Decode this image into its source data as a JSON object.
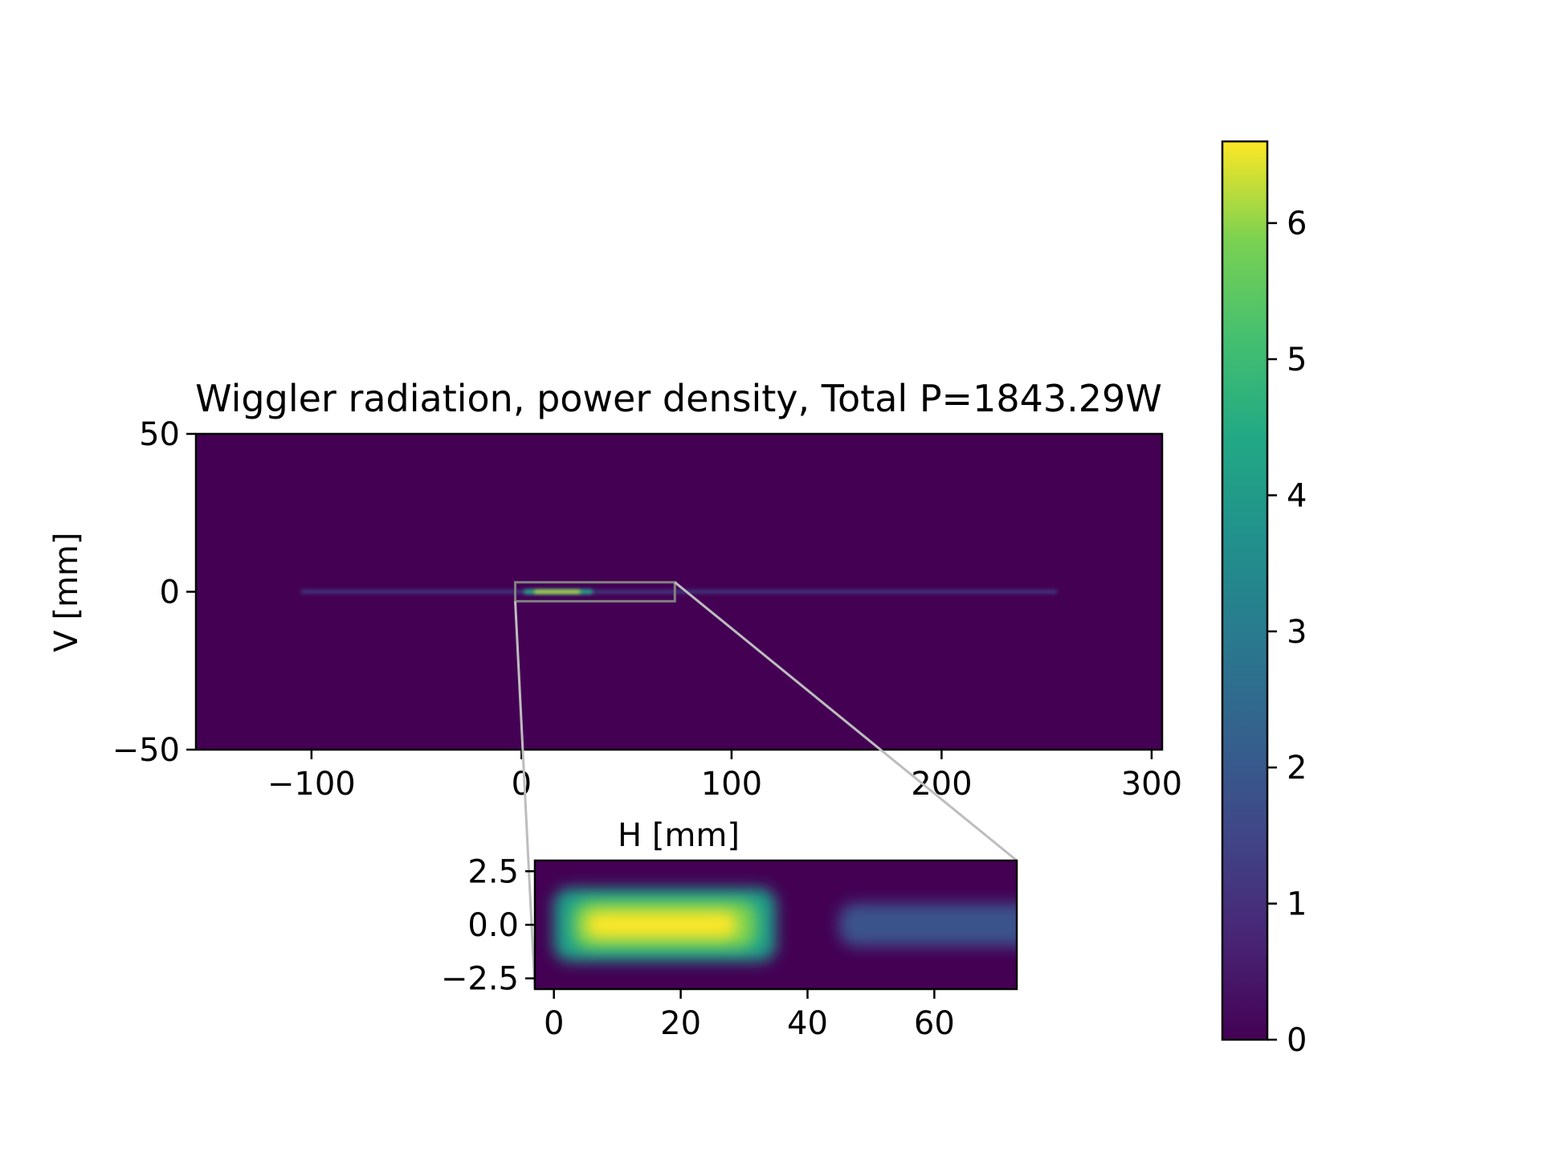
{
  "chart_data": [
    {
      "type": "heatmap",
      "title": "Wiggler radiation, power density, Total P=1843.29W",
      "xlabel": "H [mm]",
      "ylabel": "V [mm]",
      "xlim": [
        -155,
        305
      ],
      "ylim": [
        -50,
        50
      ],
      "xticks": [
        -100,
        0,
        100,
        200,
        300
      ],
      "xtick_labels": [
        "−100",
        "0",
        "100",
        "200",
        "300"
      ],
      "yticks": [
        -50,
        0,
        50
      ],
      "ytick_labels": [
        "−50",
        "0",
        "50"
      ],
      "colormap": "viridis",
      "grid": false,
      "features": [
        {
          "label": "stripe",
          "h_start": -105,
          "h_end": 255,
          "v": 0,
          "intensity": 1.2
        },
        {
          "label": "peak",
          "h_start": 3,
          "h_end": 30,
          "v": 0,
          "intensity": 6.6
        }
      ],
      "zoom_box": {
        "h_range": [
          -3,
          73
        ],
        "v_range": [
          -3,
          3
        ]
      }
    },
    {
      "type": "heatmap",
      "title": "",
      "xlabel": "",
      "ylabel": "",
      "xlim": [
        -3,
        73
      ],
      "ylim": [
        -3,
        3
      ],
      "xticks": [
        0,
        20,
        40,
        60
      ],
      "xtick_labels": [
        "0",
        "20",
        "40",
        "60"
      ],
      "yticks": [
        2.5,
        0.0,
        -2.5
      ],
      "ytick_labels": [
        "2.5",
        "0.0",
        "−2.5"
      ],
      "colormap": "viridis",
      "grid": false,
      "features": [
        {
          "label": "peak",
          "h_start": 3,
          "h_end": 30,
          "v": 0,
          "intensity": 6.6
        },
        {
          "label": "tail",
          "h_start": 45,
          "h_end": 73,
          "v": 0,
          "intensity": 1.3
        }
      ]
    },
    {
      "type": "colorbar",
      "vmin": 0,
      "vmax": 6.6,
      "ticks": [
        0,
        1,
        2,
        3,
        4,
        5,
        6
      ],
      "tick_labels": [
        "0",
        "1",
        "2",
        "3",
        "4",
        "5",
        "6"
      ],
      "colormap": "viridis"
    }
  ],
  "colors": {
    "background_low": "#440154",
    "peak_high": "#fde725",
    "zoom_lines": "#bdbdbd",
    "zoom_box": "#808080"
  }
}
